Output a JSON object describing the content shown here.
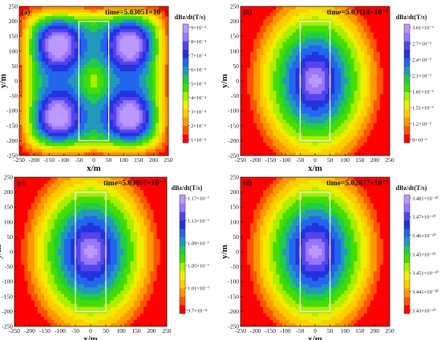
{
  "chart_data": [
    {
      "type": "heatmap",
      "panel_label": "(a)",
      "title": "time=5.03051×10⁻⁵",
      "xlabel": "x/m",
      "ylabel": "y/m",
      "xlim": [
        -250,
        250
      ],
      "ylim": [
        -250,
        250
      ],
      "xticks": [
        "-250",
        "-200",
        "-150",
        "-100",
        "-50",
        "0",
        "50",
        "100",
        "150",
        "200",
        "250"
      ],
      "yticks": [
        "250",
        "200",
        "150",
        "100",
        "50",
        "0",
        "-50",
        "-100",
        "-150",
        "-200",
        "-250"
      ],
      "colorbar_title": "dBz/dt(T/s)",
      "colorbar_ticks": [
        "9×10⁻⁴",
        "8×10⁻⁴",
        "7×10⁻⁴",
        "6×10⁻⁴",
        "5×10⁻⁴",
        "4×10⁻⁴",
        "3×10⁻⁴",
        "2×10⁻⁴",
        "1×10⁻⁴"
      ],
      "colormap": [
        "#ff0000",
        "#ff5500",
        "#ff9900",
        "#ffcc00",
        "#eeee00",
        "#aaee00",
        "#44dd00",
        "#22cc44",
        "#2299bb",
        "#2266ee",
        "#2233dd",
        "#5544ee",
        "#9977ff",
        "#bb99ff"
      ],
      "field_pattern": "four-lobe",
      "rectangle": {
        "x": [
          -50,
          50
        ],
        "y": [
          -200,
          200
        ]
      },
      "grid": false
    },
    {
      "type": "heatmap",
      "panel_label": "(b)",
      "title": "time=5.03114×10⁻⁵",
      "xlabel": "x/m",
      "ylabel": "y/m",
      "xlim": [
        -250,
        250
      ],
      "ylim": [
        -250,
        250
      ],
      "xticks": [
        "-250",
        "-200",
        "-150",
        "-100",
        "-50",
        "0",
        "50",
        "100",
        "150",
        "200",
        "250"
      ],
      "yticks": [
        "250",
        "200",
        "150",
        "100",
        "50",
        "0",
        "-50",
        "-100",
        "-150",
        "-200",
        "-250"
      ],
      "colorbar_title": "dBz/dt(T/s)",
      "colorbar_ticks": [
        "3.01×10⁻⁵",
        "2.7×10⁻⁵",
        "2.4×10⁻⁵",
        "2.1×10⁻⁵",
        "1.81×10⁻⁵",
        "1.51×10⁻⁵",
        "1.2×10⁻⁵",
        "9×10⁻⁶"
      ],
      "colormap": [
        "#ff0000",
        "#ff5500",
        "#ff9900",
        "#ffcc00",
        "#eeee00",
        "#aaee00",
        "#44dd00",
        "#22cc44",
        "#2299bb",
        "#2266ee",
        "#2233dd",
        "#5544ee",
        "#9977ff",
        "#bb99ff"
      ],
      "field_pattern": "central-ellipse",
      "rectangle": {
        "x": [
          -50,
          50
        ],
        "y": [
          -200,
          200
        ]
      },
      "grid": false
    },
    {
      "type": "heatmap",
      "panel_label": "(c)",
      "title": "time=5.03057×10⁻⁴",
      "xlabel": "x/m",
      "ylabel": "y/m",
      "xlim": [
        -250,
        250
      ],
      "ylim": [
        -250,
        250
      ],
      "xticks": [
        "-250",
        "-200",
        "-150",
        "-100",
        "-50",
        "0",
        "50",
        "100",
        "150",
        "200",
        "250"
      ],
      "yticks": [
        "250",
        "200",
        "150",
        "100",
        "50",
        "0",
        "-50",
        "-100",
        "-150",
        "-200",
        "-250"
      ],
      "colorbar_title": "dBz/dt(T/s)",
      "colorbar_ticks": [
        "1.17×10⁻⁷",
        "1.13×10⁻⁷",
        "1.09×10⁻⁷",
        "1.05×10⁻⁷",
        "1.01×10⁻⁷",
        "9.7×10⁻⁸"
      ],
      "colormap": [
        "#ff0000",
        "#ff5500",
        "#ff9900",
        "#ffcc00",
        "#eeee00",
        "#aaee00",
        "#44dd00",
        "#22cc44",
        "#2299bb",
        "#2266ee",
        "#2233dd",
        "#5544ee",
        "#9977ff",
        "#bb99ff"
      ],
      "field_pattern": "central-ellipse",
      "rectangle": {
        "x": [
          -50,
          50
        ],
        "y": [
          -200,
          200
        ]
      },
      "grid": false
    },
    {
      "type": "heatmap",
      "panel_label": "(d)",
      "title": "time=5.02877×10⁻³",
      "xlabel": "x/m",
      "ylabel": "y/m",
      "xlim": [
        -250,
        250
      ],
      "ylim": [
        -250,
        250
      ],
      "xticks": [
        "-250",
        "-200",
        "-150",
        "-100",
        "-50",
        "0",
        "50",
        "100",
        "150",
        "200",
        "250"
      ],
      "yticks": [
        "250",
        "200",
        "150",
        "100",
        "50",
        "0",
        "-50",
        "-100",
        "-150",
        "-200",
        "-250"
      ],
      "colorbar_title": "dBz/dt(T/s)",
      "colorbar_ticks": [
        "3.481×10⁻¹⁰",
        "3.47×10⁻¹⁰",
        "3.46×10⁻¹⁰",
        "3.45×10⁻¹⁰",
        "3.451×10⁻¹⁰",
        "3.441×10⁻¹⁰",
        "3.43×10⁻¹⁰"
      ],
      "colormap": [
        "#ff0000",
        "#ff5500",
        "#ff9900",
        "#ffcc00",
        "#eeee00",
        "#aaee00",
        "#44dd00",
        "#22cc44",
        "#2299bb",
        "#2266ee",
        "#2233dd",
        "#5544ee",
        "#9977ff",
        "#bb99ff"
      ],
      "field_pattern": "central-ellipse",
      "rectangle": {
        "x": [
          -50,
          50
        ],
        "y": [
          -200,
          200
        ]
      },
      "grid": false
    }
  ]
}
